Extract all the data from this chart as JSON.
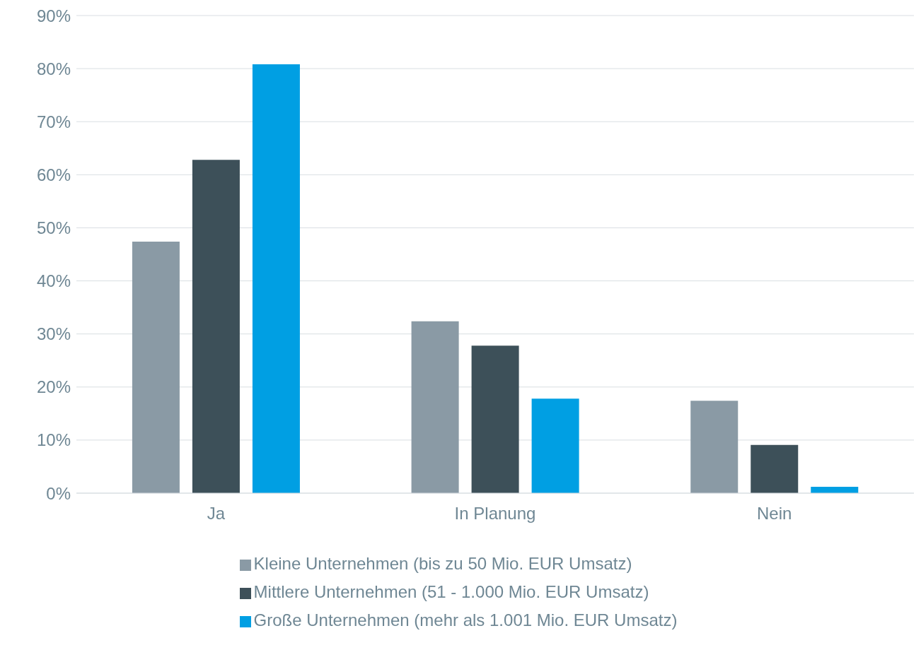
{
  "chart_data": {
    "type": "bar",
    "categories": [
      "Ja",
      "In Planung",
      "Nein"
    ],
    "series": [
      {
        "name": "Kleine Unternehmen (bis zu 50 Mio. EUR Umsatz)",
        "color": "#8a9aa5",
        "values": [
          47.4,
          32.4,
          17.4
        ]
      },
      {
        "name": "Mittlere Unternehmen (51 - 1.000 Mio. EUR Umsatz)",
        "color": "#3d5059",
        "values": [
          62.8,
          27.8,
          9.1
        ]
      },
      {
        "name": "Große Unternehmen (mehr als 1.001 Mio. EUR Umsatz)",
        "color": "#009fe3",
        "values": [
          80.8,
          17.8,
          1.2
        ]
      }
    ],
    "ylim": [
      0,
      90
    ],
    "yticks": [
      {
        "value": 0,
        "label": "0%"
      },
      {
        "value": 10,
        "label": "10%"
      },
      {
        "value": 20,
        "label": "20%"
      },
      {
        "value": 30,
        "label": "30%"
      },
      {
        "value": 40,
        "label": "40%"
      },
      {
        "value": 50,
        "label": "50%"
      },
      {
        "value": 60,
        "label": "60%"
      },
      {
        "value": 70,
        "label": "70%"
      },
      {
        "value": 80,
        "label": "80%"
      },
      {
        "value": 90,
        "label": "90%"
      }
    ],
    "grid": "y",
    "legend": "bottom"
  }
}
